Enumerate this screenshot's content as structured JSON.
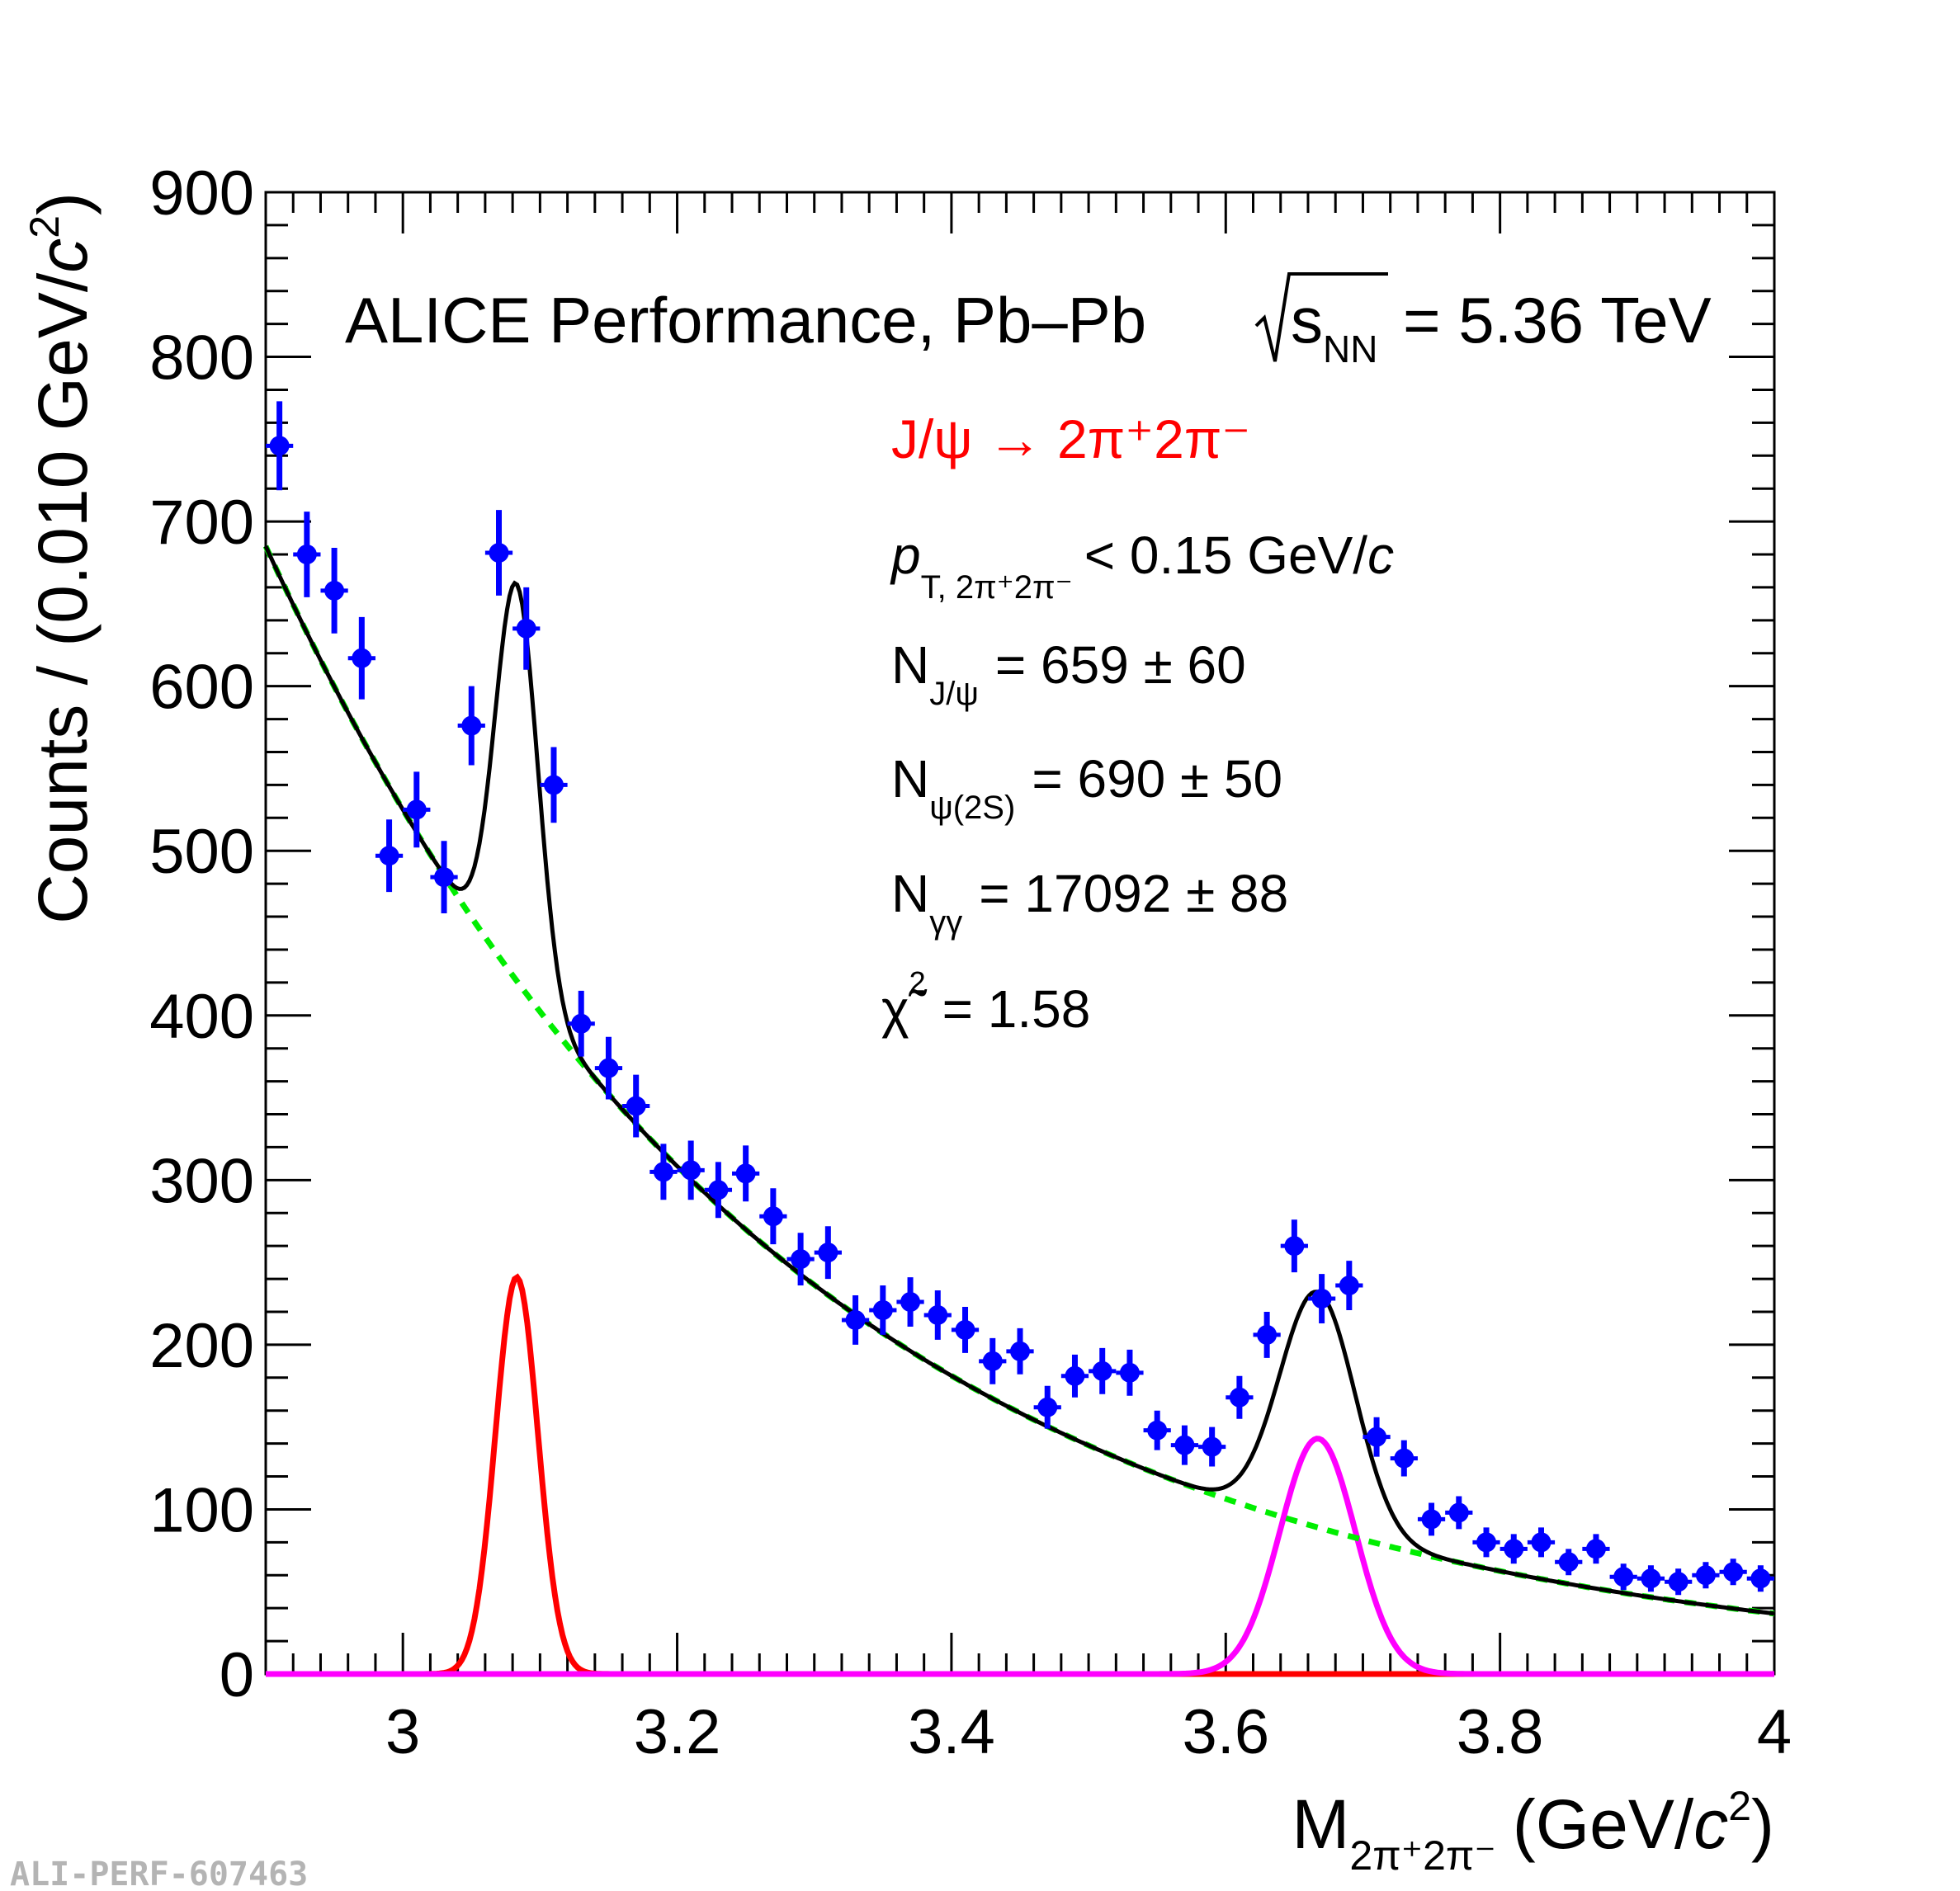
{
  "chart_data": {
    "type": "scatter",
    "title": "ALICE Performance, Pb–Pb",
    "title_energy": "= 5.36 TeV",
    "title_sqrt_base": "s",
    "title_sqrt_sub": "NN",
    "xlabel_base": "M",
    "xlabel_sub": "2π⁺2π⁻",
    "xlabel_units": "(GeV/",
    "xlabel_units_c": "c",
    "xlabel_units_exp": "2",
    "xlabel_units_end": ")",
    "ylabel_main": "Counts / (0.010 GeV/",
    "ylabel_c": "c",
    "ylabel_exp": "2",
    "ylabel_end": ")",
    "xlim": [
      2.9,
      4.0
    ],
    "ylim": [
      0,
      900
    ],
    "x_major_ticks": [
      3.0,
      3.2,
      3.4,
      3.6,
      3.8,
      4.0
    ],
    "x_tick_labels": [
      "3",
      "3.2",
      "3.4",
      "3.6",
      "3.8",
      "4"
    ],
    "y_major_ticks": [
      0,
      100,
      200,
      300,
      400,
      500,
      600,
      700,
      800,
      900
    ],
    "y_tick_labels": [
      "0",
      "100",
      "200",
      "300",
      "400",
      "500",
      "600",
      "700",
      "800",
      "900"
    ],
    "watermark": "ALI-PERF-607463",
    "annotations": {
      "decay": "J/ψ → 2π⁺2π⁻",
      "pt_cut_symbol": "p",
      "pt_cut_sub": "T, 2π⁺2π⁻",
      "pt_cut_value": "< 0.15 GeV/",
      "pt_cut_c": "c",
      "n_jpsi_symbol": "N",
      "n_jpsi_sub": "J/ψ",
      "n_jpsi_value": "= 659 ± 60",
      "n_psi2s_symbol": "N",
      "n_psi2s_sub": "ψ(2S)",
      "n_psi2s_value": "= 690 ± 50",
      "n_gg_symbol": "N",
      "n_gg_sub": "γγ",
      "n_gg_value": "= 17092 ± 88",
      "chi2_symbol": "χ̃",
      "chi2_exp": "2",
      "chi2_value": "= 1.58"
    },
    "series": [
      {
        "name": "data",
        "style": "points-with-errors",
        "color": "#0000ff",
        "x": [
          2.91,
          2.93,
          2.95,
          2.97,
          2.99,
          3.01,
          3.03,
          3.05,
          3.07,
          3.09,
          3.11,
          3.13,
          3.15,
          3.17,
          3.19,
          3.21,
          3.23,
          3.25,
          3.27,
          3.29,
          3.31,
          3.33,
          3.35,
          3.37,
          3.39,
          3.41,
          3.43,
          3.45,
          3.47,
          3.49,
          3.51,
          3.53,
          3.55,
          3.57,
          3.59,
          3.61,
          3.63,
          3.65,
          3.67,
          3.69,
          3.71,
          3.73,
          3.75,
          3.77,
          3.79,
          3.81,
          3.83,
          3.85,
          3.87,
          3.89,
          3.91,
          3.93,
          3.95,
          3.97,
          3.99
        ],
        "y": [
          746,
          680,
          658,
          617,
          497,
          525,
          484,
          576,
          681,
          635,
          540,
          395,
          368,
          345,
          305,
          306,
          294,
          304,
          278,
          252,
          256,
          215,
          221,
          226,
          218,
          209,
          190,
          196,
          162,
          181,
          184,
          183,
          148,
          139,
          138,
          168,
          206,
          260,
          228,
          236,
          144,
          131,
          94,
          98,
          80,
          76,
          80,
          68,
          76,
          59,
          58,
          56,
          60,
          62,
          58
        ],
        "yerr": [
          27,
          26,
          26,
          25,
          22,
          23,
          22,
          24,
          26,
          25,
          23,
          20,
          19,
          19,
          17,
          18,
          17,
          17,
          17,
          16,
          16,
          15,
          15,
          15,
          15,
          14,
          14,
          14,
          13,
          13,
          14,
          14,
          12,
          12,
          12,
          13,
          14,
          16,
          15,
          15,
          12,
          11,
          10,
          10,
          9,
          9,
          9,
          8,
          9,
          8,
          8,
          8,
          8,
          8,
          8
        ]
      },
      {
        "name": "total fit",
        "style": "line",
        "color": "#000000"
      },
      {
        "name": "background",
        "style": "dashed",
        "color": "#00ee00"
      },
      {
        "name": "J/psi",
        "style": "line",
        "color": "#ff0000",
        "mean": 3.083,
        "sigma": 0.0155,
        "amplitude": 241
      },
      {
        "name": "psi(2S)",
        "style": "line",
        "color": "#ff00ff",
        "mean": 3.667,
        "sigma": 0.0275,
        "amplitude": 143
      }
    ],
    "background_model": {
      "a": 685,
      "b": 2.66,
      "x0": 2.9
    }
  },
  "colors": {
    "data": "#0000ff",
    "fit": "#000000",
    "bkg": "#00ee00",
    "jpsi": "#ff0000",
    "psi2s": "#ff00ff",
    "decay_text": "#ff0000",
    "watermark": "#b4b4b4"
  }
}
